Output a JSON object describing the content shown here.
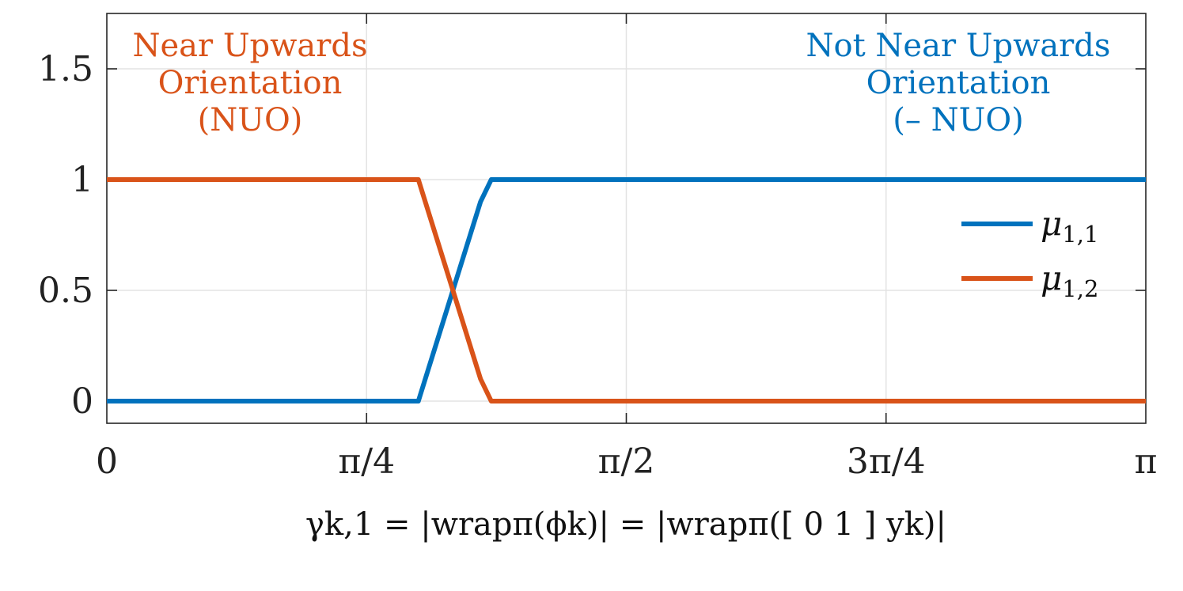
{
  "chart_data": {
    "type": "line",
    "x_domain": [
      0,
      3.14159265
    ],
    "ylim": [
      -0.1,
      1.75
    ],
    "xticks": [
      {
        "value": 0,
        "label": "0"
      },
      {
        "value": 0.78539816,
        "label": "π/4"
      },
      {
        "value": 1.57079633,
        "label": "π/2"
      },
      {
        "value": 2.35619449,
        "label": "3π/4"
      },
      {
        "value": 3.14159265,
        "label": "π"
      }
    ],
    "yticks": [
      {
        "value": 0,
        "label": "0"
      },
      {
        "value": 0.5,
        "label": "0.5"
      },
      {
        "value": 1,
        "label": "1"
      },
      {
        "value": 1.5,
        "label": "1.5"
      }
    ],
    "grid": true,
    "legend_position": "right",
    "xlabel": "γk,1 = |wrapπ(ϕk)| = |wrapπ([ 0 1 ] yk)|",
    "series": [
      {
        "name": "μ1,1",
        "color": "#0072BD",
        "x": [
          0,
          0.942,
          1.13,
          1.1624,
          3.14159
        ],
        "y": [
          0,
          0,
          0.9,
          1,
          1
        ]
      },
      {
        "name": "μ1,2",
        "color": "#D95319",
        "x": [
          0,
          0.942,
          1.13,
          1.1624,
          3.14159
        ],
        "y": [
          1,
          1,
          0.1,
          0,
          0
        ]
      }
    ],
    "annotations": [
      {
        "lines": [
          "Near Upwards",
          "Orientation",
          "(NUO)"
        ],
        "color": "#D95319",
        "position": "top-left"
      },
      {
        "lines": [
          "Not Near Upwards",
          "Orientation",
          "(– NUO)"
        ],
        "color": "#0072BD",
        "position": "top-right"
      }
    ]
  }
}
